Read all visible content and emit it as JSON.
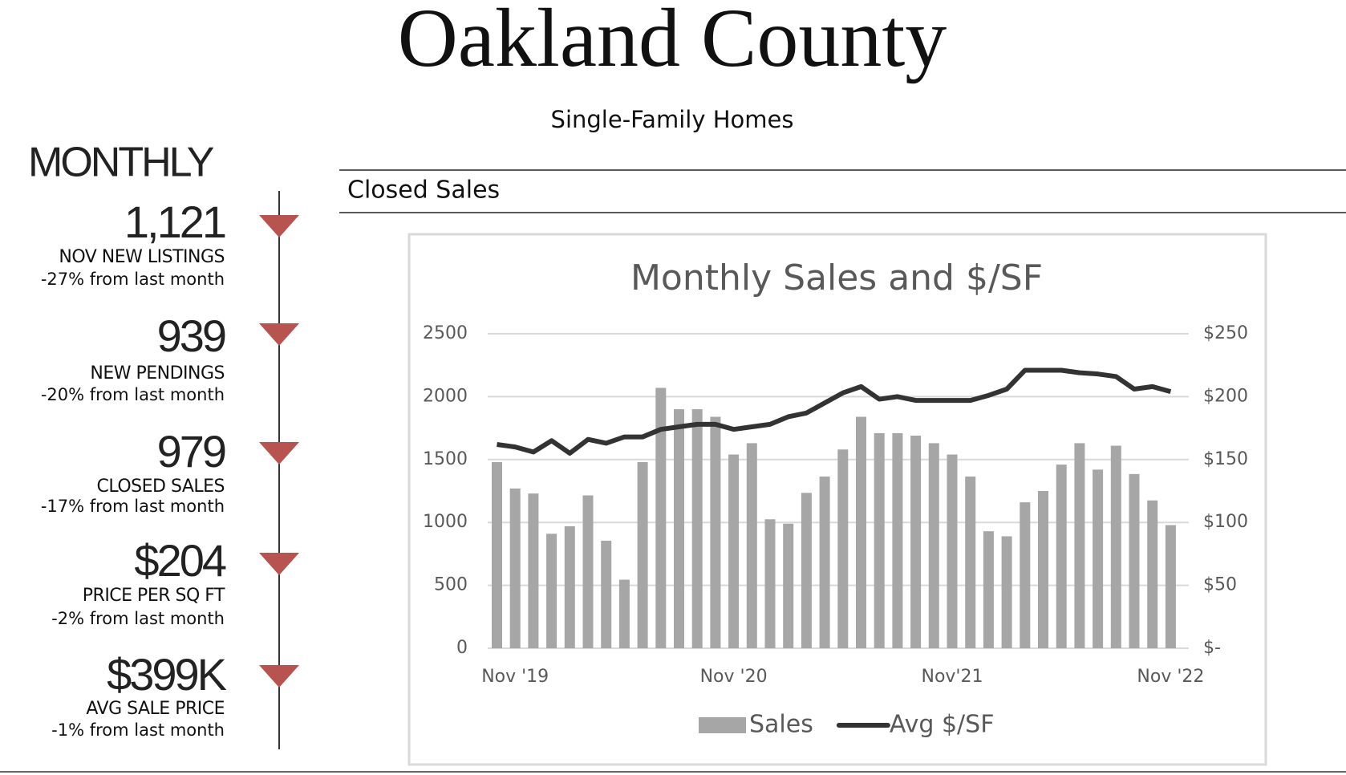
{
  "header": {
    "title": "Oakland County",
    "subtitle": "Single-Family Homes"
  },
  "section": {
    "heading": "MONTHLY"
  },
  "metrics": [
    {
      "value": "1,121",
      "label": "NOV NEW LISTINGS",
      "change": "-27% from last month"
    },
    {
      "value": "939",
      "label": "NEW PENDINGS",
      "change": "-20% from last month"
    },
    {
      "value": "979",
      "label": "CLOSED SALES",
      "change": "-17% from last month"
    },
    {
      "value": "$204",
      "label": "PRICE PER SQ FT",
      "change": "-2% from last month"
    },
    {
      "value": "$399K",
      "label": "AVG SALE PRICE",
      "change": "-1% from last month"
    }
  ],
  "closed_sales": {
    "heading": "Closed Sales"
  },
  "chart_data": {
    "type": "combo",
    "title": "Monthly Sales and $/SF",
    "categories": [
      null,
      "Nov '19",
      null,
      null,
      null,
      null,
      null,
      null,
      null,
      null,
      null,
      null,
      null,
      "Nov '20",
      null,
      null,
      null,
      null,
      null,
      null,
      null,
      null,
      null,
      null,
      null,
      "Nov'21",
      null,
      null,
      null,
      null,
      null,
      null,
      null,
      null,
      null,
      null,
      null,
      "Nov '22"
    ],
    "series": [
      {
        "name": "Sales",
        "type": "bar",
        "color": "#a6a6a6",
        "values": [
          1480,
          1270,
          1230,
          910,
          970,
          1215,
          855,
          545,
          1480,
          2070,
          1900,
          1900,
          1840,
          1540,
          1630,
          1025,
          990,
          1235,
          1365,
          1580,
          1840,
          1710,
          1710,
          1690,
          1630,
          1540,
          1365,
          930,
          890,
          1160,
          1250,
          1460,
          1630,
          1420,
          1610,
          1385,
          1175,
          979
        ]
      },
      {
        "name": "Avg $/SF",
        "type": "line",
        "axis": "y2",
        "color": "#333333",
        "values": [
          162,
          160,
          156,
          165,
          155,
          166,
          163,
          168,
          168,
          174,
          176,
          178,
          178,
          174,
          176,
          178,
          184,
          187,
          195,
          203,
          208,
          198,
          200,
          197,
          197,
          197,
          197,
          201,
          206,
          221,
          221,
          221,
          219,
          218,
          216,
          206,
          208,
          204
        ]
      }
    ],
    "ylim": [
      0,
      2500
    ],
    "yticks": [
      0,
      500,
      1000,
      1500,
      2000,
      2500
    ],
    "y2lim": [
      0,
      250
    ],
    "y2ticks": [
      {
        "value": 0,
        "label": "$-"
      },
      {
        "value": 50,
        "label": "$50"
      },
      {
        "value": 100,
        "label": "$100"
      },
      {
        "value": 150,
        "label": "$150"
      },
      {
        "value": 200,
        "label": "$200"
      },
      {
        "value": 250,
        "label": "$250"
      }
    ],
    "grid": true,
    "legend": "bottom"
  }
}
